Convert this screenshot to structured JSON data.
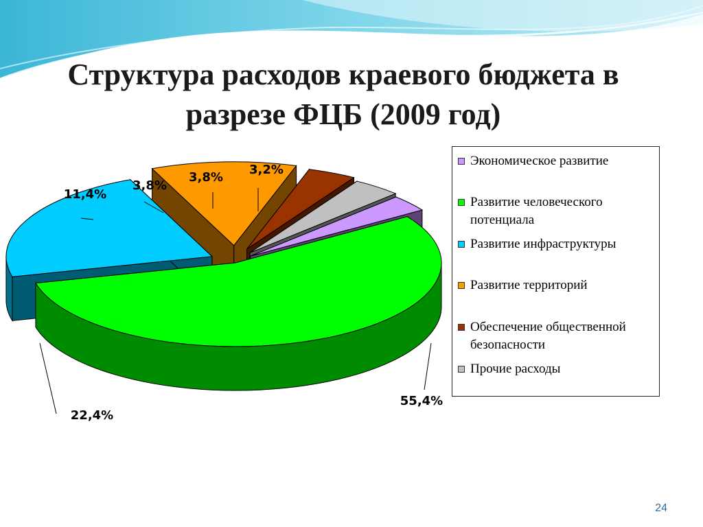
{
  "slide": {
    "title_line1": "Структура расходов краевого бюджета в",
    "title_line2": "разрезе ФЦБ (2009 год)",
    "page_number": "24"
  },
  "chart_data": {
    "type": "pie",
    "title": "",
    "legend_position": "right",
    "slices": [
      {
        "name": "Экономическое развитие",
        "value": 3.2,
        "label": "3,2%",
        "color": "#cc99ff"
      },
      {
        "name": "Развитие человеческого потенциала",
        "value": 55.4,
        "label": "55,4%",
        "color": "#00ff00"
      },
      {
        "name": "Развитие инфраструктуры",
        "value": 22.4,
        "label": "22,4%",
        "color": "#00ccff"
      },
      {
        "name": "Развитие территорий",
        "value": 11.4,
        "label": "11,4%",
        "color": "#ff9900"
      },
      {
        "name": "Обеспечение общественной безопасности",
        "value": 3.8,
        "label": "3,8%",
        "color": "#993300"
      },
      {
        "name": "Прочие расходы",
        "value": 3.8,
        "label": "3,8%",
        "color": "#c0c0c0"
      }
    ]
  }
}
